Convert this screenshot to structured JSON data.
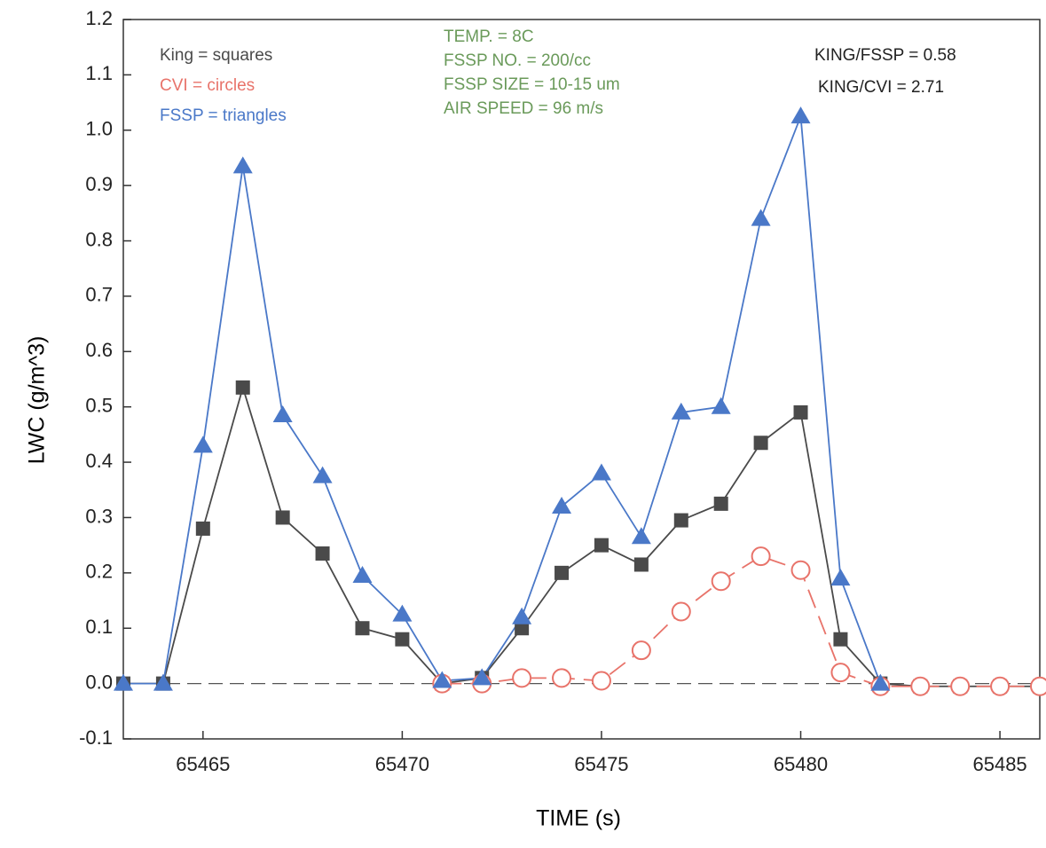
{
  "chart_data": {
    "type": "line",
    "x_label": "TIME (s)",
    "y_label": "LWC (g/m^3)",
    "x": [
      65463,
      65464,
      65465,
      65466,
      65467,
      65468,
      65469,
      65470,
      65471,
      65472,
      65473,
      65474,
      65475,
      65476,
      65477,
      65478,
      65479,
      65480,
      65481,
      65482,
      65483,
      65484,
      65485,
      65486
    ],
    "series": [
      {
        "name": "King = squares",
        "color": "#4a4a4a",
        "marker": "square",
        "dashed": false,
        "values": [
          0,
          0,
          0.28,
          0.535,
          0.3,
          0.235,
          0.1,
          0.08,
          0,
          0.01,
          0.1,
          0.2,
          0.25,
          0.215,
          0.295,
          0.325,
          0.435,
          0.49,
          0.08,
          0,
          -0.005,
          -0.005,
          -0.005,
          -0.005
        ]
      },
      {
        "name": "CVI = circles",
        "color": "#e8736a",
        "marker": "circle",
        "dashed": true,
        "values": [
          null,
          null,
          null,
          null,
          null,
          null,
          null,
          null,
          0,
          0,
          0.01,
          0.01,
          0.005,
          0.06,
          0.13,
          0.185,
          0.23,
          0.205,
          0.02,
          -0.005,
          -0.005,
          -0.005,
          -0.005,
          -0.005
        ]
      },
      {
        "name": "FSSP = triangles",
        "color": "#4a78c8",
        "marker": "triangle",
        "dashed": false,
        "values": [
          0,
          0,
          0.43,
          0.935,
          0.485,
          0.375,
          0.195,
          0.125,
          0.005,
          0.01,
          0.12,
          0.32,
          0.38,
          0.265,
          0.49,
          0.5,
          0.84,
          1.025,
          0.19,
          0,
          null,
          null,
          null,
          null
        ]
      }
    ],
    "annotations_center": [
      "TEMP. = 8C",
      "FSSP NO. = 200/cc",
      "FSSP SIZE = 10-15 um",
      "AIR SPEED = 96 m/s"
    ],
    "annotations_center_color": "#6a9a5a",
    "annotations_right": [
      "KING/FSSP = 0.58",
      "KING/CVI = 2.71"
    ],
    "reference_line": 0,
    "xlim": [
      65463,
      65486
    ],
    "ylim": [
      -0.1,
      1.2
    ],
    "xticks": [
      65465,
      65470,
      65475,
      65480,
      65485
    ],
    "yticks": [
      -0.1,
      {
        "value": 0,
        "label": "0.0"
      },
      0.1,
      0.2,
      0.3,
      0.4,
      0.5,
      0.6,
      0.7,
      0.8,
      0.9,
      {
        "value": 1,
        "label": "1.0"
      },
      1.1,
      1.2
    ]
  }
}
